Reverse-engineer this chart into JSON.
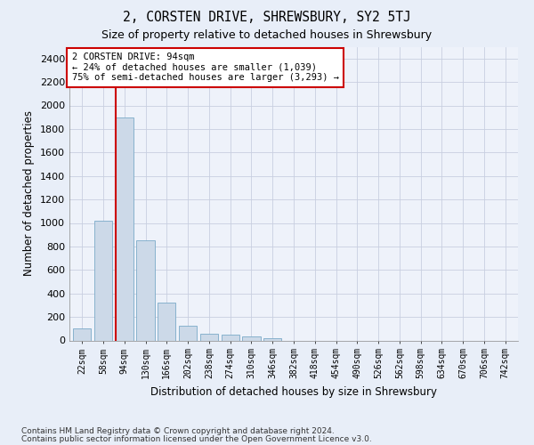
{
  "title": "2, CORSTEN DRIVE, SHREWSBURY, SY2 5TJ",
  "subtitle": "Size of property relative to detached houses in Shrewsbury",
  "xlabel": "Distribution of detached houses by size in Shrewsbury",
  "ylabel": "Number of detached properties",
  "footnote1": "Contains HM Land Registry data © Crown copyright and database right 2024.",
  "footnote2": "Contains public sector information licensed under the Open Government Licence v3.0.",
  "bar_color": "#ccd9e8",
  "bar_edge_color": "#7aaac8",
  "vline_color": "#cc0000",
  "vline_x": 2,
  "annotation_box_color": "#cc0000",
  "annotation_text": "2 CORSTEN DRIVE: 94sqm\n← 24% of detached houses are smaller (1,039)\n75% of semi-detached houses are larger (3,293) →",
  "categories": [
    "22sqm",
    "58sqm",
    "94sqm",
    "130sqm",
    "166sqm",
    "202sqm",
    "238sqm",
    "274sqm",
    "310sqm",
    "346sqm",
    "382sqm",
    "418sqm",
    "454sqm",
    "490sqm",
    "526sqm",
    "562sqm",
    "598sqm",
    "634sqm",
    "670sqm",
    "706sqm",
    "742sqm"
  ],
  "values": [
    100,
    1020,
    1900,
    855,
    320,
    125,
    60,
    50,
    35,
    22,
    0,
    0,
    0,
    0,
    0,
    0,
    0,
    0,
    0,
    0,
    0
  ],
  "ylim": [
    0,
    2500
  ],
  "yticks": [
    0,
    200,
    400,
    600,
    800,
    1000,
    1200,
    1400,
    1600,
    1800,
    2000,
    2200,
    2400
  ],
  "figsize": [
    6.0,
    5.0
  ],
  "dpi": 100,
  "bg_color": "#e8eef8",
  "plot_bg_color": "#eef2fa",
  "grid_color": "#c8cfe0"
}
